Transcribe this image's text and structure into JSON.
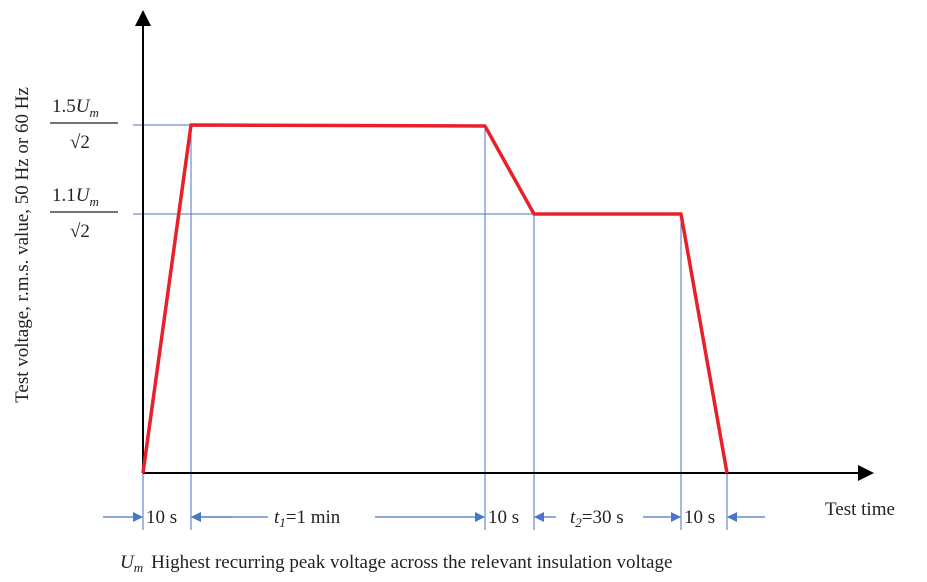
{
  "y_axis_label": "Test voltage, r.m.s. value, 50 Hz or 60 Hz",
  "x_axis_label": "Test time",
  "levels": [
    {
      "coefficient": "1.5",
      "symbol": "U",
      "subscript": "m",
      "denominator": "√2"
    },
    {
      "coefficient": "1.1",
      "symbol": "U",
      "subscript": "m",
      "denominator": "√2"
    }
  ],
  "intervals": [
    {
      "text": "10 s"
    },
    {
      "symbol": "t",
      "subscript": "1",
      "text": "=1 min"
    },
    {
      "text": "10 s"
    },
    {
      "symbol": "t",
      "subscript": "2",
      "text": "=30 s"
    },
    {
      "text": "10 s"
    }
  ],
  "caption": {
    "symbol": "U",
    "subscript": "m",
    "text": "Highest recurring peak voltage across the relevant insulation voltage"
  }
}
